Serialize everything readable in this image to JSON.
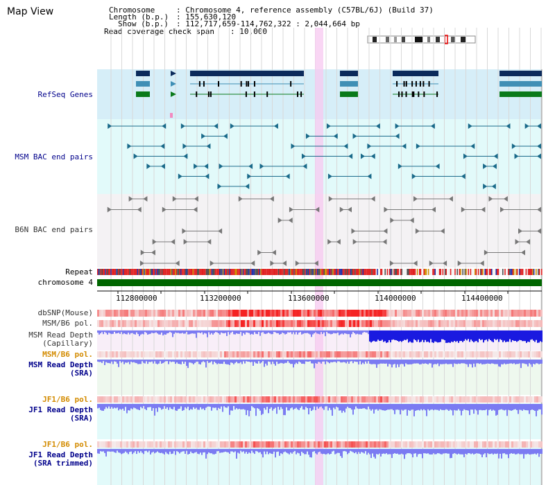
{
  "app": {
    "title": "Map View"
  },
  "header": {
    "chromosome_label": "Chromosome",
    "chromosome_value": "Chromosome 4, reference assembly (C57BL/6J) (Build 37)",
    "length_label": "Length (b.p.)",
    "length_value": "155,630,120",
    "show_label": "Show (b.p.)",
    "show_value": "112,717,659-114,762,322 : 2,044,664 bp",
    "coverage_label": "Read coverage check span",
    "coverage_value": "10,000"
  },
  "tracks": {
    "refseq": "RefSeq Genes",
    "msm_bac": "MSM BAC end pairs",
    "b6n_bac": "B6N BAC end pairs",
    "repeat": "Repeat",
    "chromosome": "chromosome 4",
    "dbsnp": "dbSNP(Mouse)",
    "msm_b6_pol": "MSM/B6 pol.",
    "msm_depth_cap_1": "MSM Read Depth",
    "msm_depth_cap_2": "(Capillary)",
    "msm_b6_pol_2": "MSM/B6 pol.",
    "msm_depth_sra_1": "MSM Read Depth",
    "msm_depth_sra_2": "(SRA)",
    "jf1_b6_pol": "JF1/B6 pol.",
    "jf1_depth_sra_1": "JF1 Read Depth",
    "jf1_depth_sra_2": "(SRA)",
    "jf1_b6_pol_2": "JF1/B6 pol.",
    "jf1_depth_trim_1": "JF1 Read Depth",
    "jf1_depth_trim_2": "(SRA trimmed)"
  },
  "axis": {
    "ticks": [
      "112800000",
      "113200000",
      "113600000",
      "114000000",
      "114400000"
    ]
  },
  "colors": {
    "refseq_bg": "#d6eef8",
    "bac_bg": "#e2fafa",
    "highlight": "#f7c8f0",
    "gene_navy": "#0b2a5b",
    "gene_teal": "#3f8fb5",
    "gene_green": "#0a7a1a",
    "chrom_green": "#006600",
    "depth_blue": "#1a1ae0",
    "depth_light": "#7b7bf2",
    "snp_red": "#f02020"
  }
}
